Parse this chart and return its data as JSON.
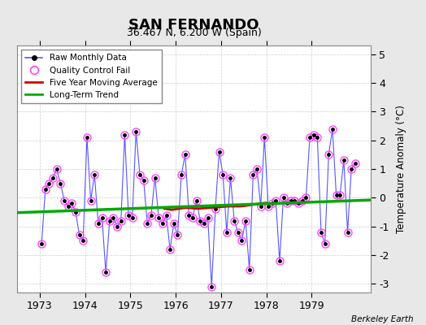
{
  "title": "SAN FERNANDO",
  "subtitle": "36.467 N, 6.200 W (Spain)",
  "ylabel": "Temperature Anomaly (°C)",
  "attribution": "Berkeley Earth",
  "xlim": [
    1972.5,
    1980.3
  ],
  "ylim": [
    -3.3,
    5.3
  ],
  "yticks": [
    -3,
    -2,
    -1,
    0,
    1,
    2,
    3,
    4,
    5
  ],
  "xticks": [
    1973,
    1974,
    1975,
    1976,
    1977,
    1978,
    1979
  ],
  "background_color": "#e8e8e8",
  "plot_background": "#ffffff",
  "raw_data_x": [
    1973.042,
    1973.125,
    1973.208,
    1973.292,
    1973.375,
    1973.458,
    1973.542,
    1973.625,
    1973.708,
    1973.792,
    1973.875,
    1973.958,
    1974.042,
    1974.125,
    1974.208,
    1974.292,
    1974.375,
    1974.458,
    1974.542,
    1974.625,
    1974.708,
    1974.792,
    1974.875,
    1974.958,
    1975.042,
    1975.125,
    1975.208,
    1975.292,
    1975.375,
    1975.458,
    1975.542,
    1975.625,
    1975.708,
    1975.792,
    1975.875,
    1975.958,
    1976.042,
    1976.125,
    1976.208,
    1976.292,
    1976.375,
    1976.458,
    1976.542,
    1976.625,
    1976.708,
    1976.792,
    1976.875,
    1976.958,
    1977.042,
    1977.125,
    1977.208,
    1977.292,
    1977.375,
    1977.458,
    1977.542,
    1977.625,
    1977.708,
    1977.792,
    1977.875,
    1977.958,
    1978.042,
    1978.125,
    1978.208,
    1978.292,
    1978.375,
    1978.458,
    1978.542,
    1978.625,
    1978.708,
    1978.792,
    1978.875,
    1978.958,
    1979.042,
    1979.125,
    1979.208,
    1979.292,
    1979.375,
    1979.458,
    1979.542,
    1979.625,
    1979.708,
    1979.792,
    1979.875,
    1979.958
  ],
  "raw_data_y": [
    -1.6,
    0.3,
    0.5,
    0.7,
    1.0,
    0.5,
    -0.1,
    -0.3,
    -0.2,
    -0.5,
    -1.3,
    -1.5,
    2.1,
    -0.1,
    0.8,
    -0.9,
    -0.7,
    -2.6,
    -0.8,
    -0.7,
    -1.0,
    -0.8,
    2.2,
    -0.6,
    -0.7,
    2.3,
    0.8,
    0.6,
    -0.9,
    -0.6,
    0.7,
    -0.7,
    -0.9,
    -0.6,
    -1.8,
    -0.9,
    -1.3,
    0.8,
    1.5,
    -0.6,
    -0.7,
    -0.1,
    -0.8,
    -0.9,
    -0.7,
    -3.1,
    -0.4,
    1.6,
    0.8,
    -1.2,
    0.7,
    -0.8,
    -1.2,
    -1.5,
    -0.8,
    -2.5,
    0.8,
    1.0,
    -0.3,
    2.1,
    -0.3,
    -0.2,
    -0.1,
    -2.2,
    0.0,
    -0.2,
    -0.1,
    -0.1,
    -0.2,
    -0.1,
    0.0,
    2.1,
    2.2,
    2.1,
    -1.2,
    -1.6,
    1.5,
    2.4,
    0.1,
    0.1,
    1.3,
    -1.2,
    1.0,
    1.2
  ],
  "moving_avg_x": [
    1975.75,
    1975.833,
    1975.917,
    1976.0,
    1976.083,
    1976.167,
    1976.25,
    1976.333,
    1976.417,
    1976.5,
    1976.583,
    1976.667,
    1976.75,
    1976.833,
    1976.917,
    1977.0,
    1977.083,
    1977.167,
    1977.25,
    1977.333,
    1977.417,
    1977.5,
    1977.583,
    1977.667,
    1977.75,
    1977.833,
    1977.917,
    1978.0
  ],
  "moving_avg_y": [
    -0.38,
    -0.4,
    -0.42,
    -0.4,
    -0.38,
    -0.36,
    -0.35,
    -0.36,
    -0.37,
    -0.38,
    -0.37,
    -0.36,
    -0.35,
    -0.34,
    -0.33,
    -0.32,
    -0.31,
    -0.3,
    -0.3,
    -0.3,
    -0.3,
    -0.29,
    -0.27,
    -0.25,
    -0.23,
    -0.21,
    -0.19,
    -0.18
  ],
  "trend_x": [
    1972.5,
    1980.3
  ],
  "trend_y": [
    -0.52,
    -0.08
  ],
  "line_color": "#5555ff",
  "marker_color": "#000000",
  "qc_fail_color": "#ff44ff",
  "moving_avg_color": "#cc0000",
  "trend_color": "#00aa00",
  "grid_color": "#cccccc",
  "legend_loc": "upper left"
}
